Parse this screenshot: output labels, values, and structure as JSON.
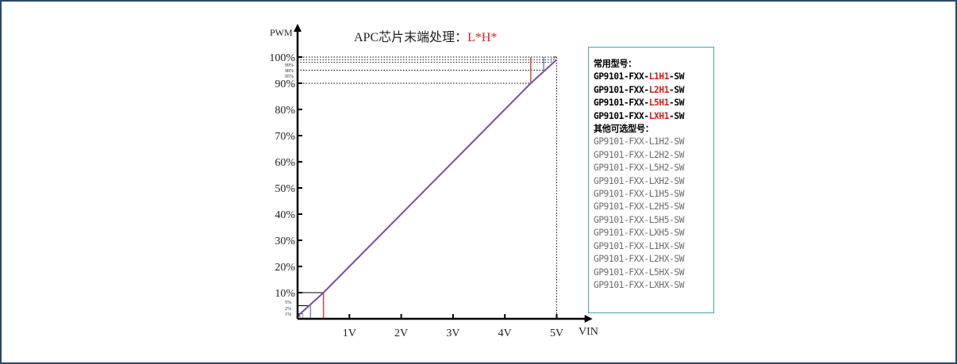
{
  "chart_data": {
    "type": "line",
    "title": "APC芯片末端处理：",
    "title_highlight": "L*H*",
    "ylabel": "PWM",
    "xlabel": "VIN",
    "x_ticks": [
      "1V",
      "2V",
      "3V",
      "4V",
      "5V"
    ],
    "x_tick_values": [
      1,
      2,
      3,
      4,
      5
    ],
    "y_ticks": [
      "10%",
      "20%",
      "30%",
      "40%",
      "50%",
      "60%",
      "70%",
      "80%",
      "90%",
      "100%"
    ],
    "y_tick_values": [
      10,
      20,
      30,
      40,
      50,
      60,
      70,
      80,
      90,
      100
    ],
    "y_small_low_labels": [
      "5%",
      "2%",
      "1%"
    ],
    "y_small_low_values": [
      5,
      2,
      1
    ],
    "y_small_high_labels": [
      "99%",
      "98%",
      "95%"
    ],
    "y_small_high_values": [
      99,
      98,
      95
    ],
    "xlim": [
      0,
      5.6
    ],
    "ylim": [
      0,
      100
    ],
    "grid": false,
    "series": [
      {
        "color": "#7a4fa0",
        "x": [
          0,
          0.5,
          4.5,
          5
        ],
        "y": [
          1,
          10,
          90,
          99
        ]
      }
    ],
    "low_markers": [
      {
        "x": 0.05,
        "y": 1,
        "color": "#e0a060"
      },
      {
        "x": 0.1,
        "y": 2,
        "color": "#8db3dc"
      },
      {
        "x": 0.25,
        "y": 5,
        "color": "#7a86c8"
      },
      {
        "x": 0.5,
        "y": 10,
        "color": "#d24a3a"
      }
    ],
    "high_markers": [
      {
        "x": 4.5,
        "y": 90,
        "color": "#d24a3a"
      },
      {
        "x": 4.75,
        "y": 95,
        "color": "#7a86c8"
      },
      {
        "x": 4.9,
        "y": 98,
        "color": "#8db3dc"
      },
      {
        "x": 4.95,
        "y": 99,
        "color": "#e0a060"
      }
    ]
  },
  "legend": {
    "common_title": "常用型号：",
    "common_models": [
      {
        "prefix": "GP9101-FXX-",
        "code": "L1H1",
        "suffix": "-SW"
      },
      {
        "prefix": "GP9101-FXX-",
        "code": "L2H1",
        "suffix": "-SW"
      },
      {
        "prefix": "GP9101-FXX-",
        "code": "L5H1",
        "suffix": "-SW"
      },
      {
        "prefix": "GP9101-FXX-",
        "code": "LXH1",
        "suffix": "-SW"
      }
    ],
    "other_title": "其他可选型号：",
    "other_models": [
      "GP9101-FXX-L1H2-SW",
      "GP9101-FXX-L2H2-SW",
      "GP9101-FXX-L5H2-SW",
      "GP9101-FXX-LXH2-SW",
      "GP9101-FXX-L1H5-SW",
      "GP9101-FXX-L2H5-SW",
      "GP9101-FXX-L5H5-SW",
      "GP9101-FXX-LXH5-SW",
      "GP9101-FXX-L1HX-SW",
      "GP9101-FXX-L2HX-SW",
      "GP9101-FXX-L5HX-SW",
      "GP9101-FXX-LXHX-SW"
    ],
    "highlight_color": "#e01818"
  }
}
